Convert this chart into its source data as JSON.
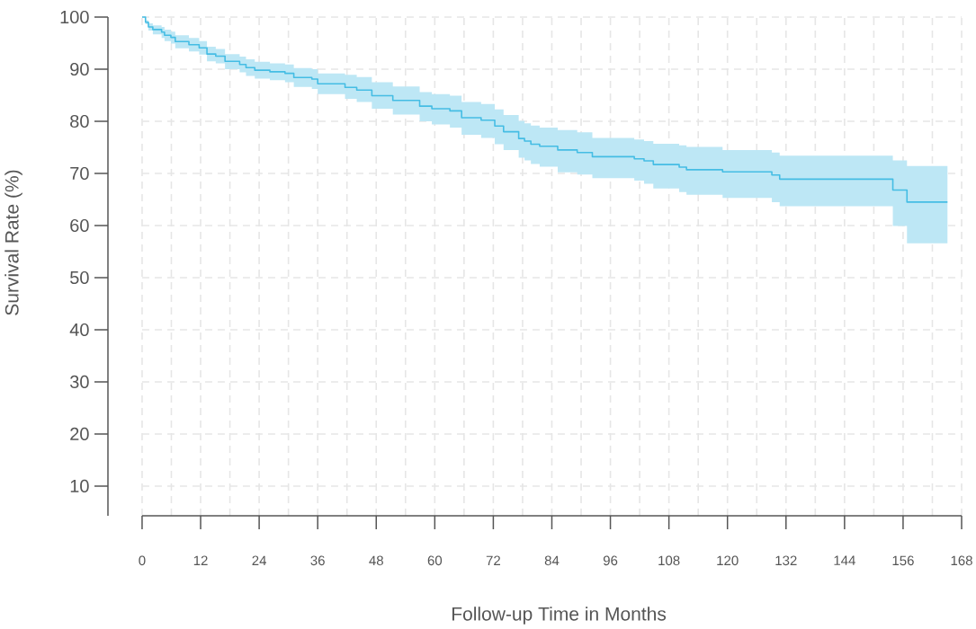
{
  "chart_data": {
    "type": "step",
    "xlabel": "Follow-up Time in Months",
    "ylabel": "Survival Rate (%)",
    "xlim": [
      -7,
      168
    ],
    "ylim": [
      4.3,
      100
    ],
    "xticks": [
      0,
      12,
      24,
      36,
      48,
      60,
      72,
      84,
      96,
      108,
      120,
      132,
      144,
      156,
      168
    ],
    "yticks": [
      10,
      20,
      30,
      40,
      50,
      60,
      70,
      80,
      90,
      100
    ],
    "grid": true,
    "x": [
      0,
      0.7,
      1.3,
      2.2,
      4,
      4.6,
      5.9,
      6.8,
      9.6,
      11.7,
      13.3,
      15.1,
      17,
      20,
      21.3,
      23.1,
      26.2,
      29.3,
      31.1,
      34.8,
      36,
      41.6,
      44,
      47.1,
      51.4,
      56.9,
      59.4,
      63.1,
      65.5,
      69.5,
      72.3,
      74.1,
      77.2,
      78.4,
      79.7,
      81.5,
      85.2,
      89.2,
      92.3,
      100.9,
      102.9,
      104.8,
      110.1,
      111.6,
      119,
      129.1,
      130.7,
      153.9,
      156.8,
      165.1
    ],
    "series": [
      {
        "color": "#45bde4",
        "values": [
          100,
          99,
          98.1,
          97.6,
          97.1,
          96.5,
          96.1,
          95.3,
          94.7,
          94.1,
          92.9,
          92.5,
          91.5,
          90.9,
          90.3,
          89.8,
          89.5,
          89.2,
          88.4,
          88.1,
          87.2,
          86.5,
          86.0,
          84.9,
          84.0,
          82.9,
          82.4,
          82.0,
          80.7,
          80.2,
          79.1,
          78.0,
          76.7,
          76.2,
          75.6,
          75.2,
          74.5,
          74.0,
          73.2,
          72.8,
          72.4,
          71.7,
          71.2,
          70.7,
          70.3,
          69.7,
          68.9,
          66.8,
          64.5,
          64.5
        ],
        "lower": [
          100,
          98.6,
          97.4,
          96.7,
          96.0,
          95.4,
          94.9,
          94.0,
          93.4,
          92.8,
          91.5,
          91.1,
          90.0,
          89.4,
          88.7,
          88.2,
          87.9,
          87.5,
          86.6,
          86.2,
          85.2,
          84.3,
          83.7,
          82.4,
          81.3,
          80.0,
          79.4,
          78.8,
          77.4,
          76.8,
          75.6,
          74.5,
          73.0,
          72.5,
          71.8,
          71.3,
          70.2,
          69.8,
          69.1,
          68.6,
          68.0,
          67.1,
          66.4,
          65.9,
          65.3,
          64.5,
          63.7,
          59.9,
          56.6,
          56.6
        ],
        "upper": [
          100,
          99.4,
          98.8,
          98.4,
          98.1,
          97.6,
          97.2,
          96.5,
          96.0,
          95.4,
          94.3,
          93.9,
          92.9,
          92.4,
          91.9,
          91.4,
          91.1,
          90.9,
          90.2,
          90.0,
          89.2,
          88.9,
          88.5,
          87.5,
          86.7,
          85.6,
          85.2,
          84.9,
          83.7,
          83.3,
          82.3,
          81.2,
          80.1,
          79.6,
          79.2,
          78.8,
          78.3,
          77.9,
          76.8,
          76.5,
          76.2,
          75.7,
          75.4,
          75.1,
          74.5,
          74.0,
          73.4,
          72.5,
          71.4,
          71.4
        ]
      }
    ]
  }
}
